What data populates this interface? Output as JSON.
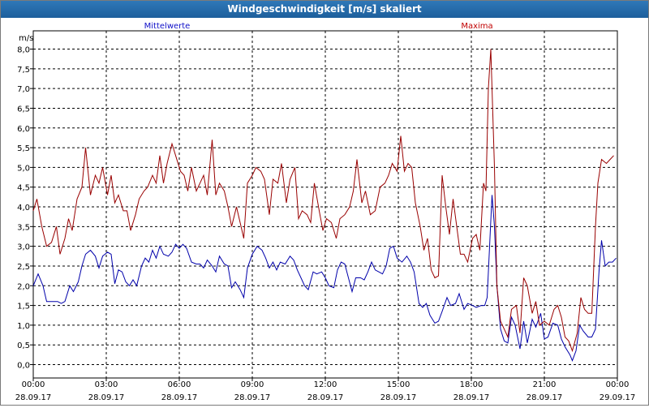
{
  "window": {
    "title": "Windgeschwindigkeit [m/s] skaliert"
  },
  "colors": {
    "mean": "#0000aa",
    "max": "#990000",
    "grid": "#000000",
    "legend_mean": "#1010c8",
    "legend_max": "#c00000"
  },
  "chart_data": {
    "type": "line",
    "title": "Windgeschwindigkeit [m/s] skaliert",
    "ylabel": "m/s",
    "ylim": [
      0,
      8
    ],
    "xlim": [
      "28.09.17 00:00",
      "29.09.17 00:00"
    ],
    "x_unit": "hours since 28.09.17 00:00",
    "yticks": [
      "0,0",
      "0,5",
      "1,0",
      "1,5",
      "2,0",
      "2,5",
      "3,0",
      "3,5",
      "4,0",
      "4,5",
      "5,0",
      "5,5",
      "6,0",
      "6,5",
      "7,0",
      "7,5",
      "8,0"
    ],
    "xticks": [
      {
        "time": "00:00",
        "date": "28.09.17"
      },
      {
        "time": "03:00",
        "date": "28.09.17"
      },
      {
        "time": "06:00",
        "date": "28.09.17"
      },
      {
        "time": "09:00",
        "date": "28.09.17"
      },
      {
        "time": "12:00",
        "date": "28.09.17"
      },
      {
        "time": "15:00",
        "date": "28.09.17"
      },
      {
        "time": "18:00",
        "date": "28.09.17"
      },
      {
        "time": "21:00",
        "date": "28.09.17"
      },
      {
        "time": "00:00",
        "date": "29.09.17"
      }
    ],
    "grid": true,
    "legend_position": "top",
    "series": [
      {
        "name": "Mittelwerte",
        "points": [
          [
            0.0,
            2.0
          ],
          [
            0.2,
            2.3
          ],
          [
            0.4,
            2.0
          ],
          [
            0.55,
            1.6
          ],
          [
            0.7,
            1.6
          ],
          [
            1.0,
            1.6
          ],
          [
            1.15,
            1.55
          ],
          [
            1.3,
            1.6
          ],
          [
            1.5,
            2.0
          ],
          [
            1.65,
            1.85
          ],
          [
            1.85,
            2.1
          ],
          [
            2.0,
            2.5
          ],
          [
            2.15,
            2.8
          ],
          [
            2.35,
            2.9
          ],
          [
            2.55,
            2.75
          ],
          [
            2.7,
            2.45
          ],
          [
            2.85,
            2.75
          ],
          [
            3.05,
            2.85
          ],
          [
            3.2,
            2.8
          ],
          [
            3.35,
            2.05
          ],
          [
            3.5,
            2.4
          ],
          [
            3.65,
            2.35
          ],
          [
            3.8,
            2.1
          ],
          [
            3.95,
            2.0
          ],
          [
            4.1,
            2.15
          ],
          [
            4.25,
            2.0
          ],
          [
            4.45,
            2.5
          ],
          [
            4.6,
            2.7
          ],
          [
            4.75,
            2.6
          ],
          [
            4.9,
            2.9
          ],
          [
            5.05,
            2.7
          ],
          [
            5.2,
            3.0
          ],
          [
            5.35,
            2.8
          ],
          [
            5.55,
            2.75
          ],
          [
            5.7,
            2.85
          ],
          [
            5.85,
            3.05
          ],
          [
            6.0,
            2.95
          ],
          [
            6.15,
            3.05
          ],
          [
            6.3,
            2.95
          ],
          [
            6.5,
            2.6
          ],
          [
            6.7,
            2.55
          ],
          [
            6.85,
            2.55
          ],
          [
            7.0,
            2.45
          ],
          [
            7.15,
            2.65
          ],
          [
            7.35,
            2.5
          ],
          [
            7.5,
            2.35
          ],
          [
            7.65,
            2.75
          ],
          [
            7.85,
            2.55
          ],
          [
            8.0,
            2.5
          ],
          [
            8.15,
            1.95
          ],
          [
            8.3,
            2.1
          ],
          [
            8.5,
            1.9
          ],
          [
            8.65,
            1.7
          ],
          [
            8.8,
            2.45
          ],
          [
            9.0,
            2.8
          ],
          [
            9.2,
            3.0
          ],
          [
            9.4,
            2.9
          ],
          [
            9.55,
            2.7
          ],
          [
            9.7,
            2.45
          ],
          [
            9.85,
            2.6
          ],
          [
            10.0,
            2.4
          ],
          [
            10.15,
            2.6
          ],
          [
            10.35,
            2.55
          ],
          [
            10.55,
            2.75
          ],
          [
            10.7,
            2.65
          ],
          [
            10.85,
            2.4
          ],
          [
            11.0,
            2.2
          ],
          [
            11.15,
            2.0
          ],
          [
            11.3,
            1.9
          ],
          [
            11.5,
            2.35
          ],
          [
            11.65,
            2.3
          ],
          [
            11.85,
            2.35
          ],
          [
            12.0,
            2.2
          ],
          [
            12.15,
            2.0
          ],
          [
            12.35,
            1.95
          ],
          [
            12.5,
            2.4
          ],
          [
            12.65,
            2.6
          ],
          [
            12.8,
            2.55
          ],
          [
            12.95,
            2.2
          ],
          [
            13.1,
            1.85
          ],
          [
            13.25,
            2.2
          ],
          [
            13.45,
            2.2
          ],
          [
            13.6,
            2.15
          ],
          [
            13.75,
            2.35
          ],
          [
            13.9,
            2.6
          ],
          [
            14.05,
            2.4
          ],
          [
            14.2,
            2.35
          ],
          [
            14.35,
            2.3
          ],
          [
            14.5,
            2.5
          ],
          [
            14.65,
            2.95
          ],
          [
            14.8,
            3.0
          ],
          [
            14.95,
            2.7
          ],
          [
            15.15,
            2.6
          ],
          [
            15.35,
            2.75
          ],
          [
            15.5,
            2.6
          ],
          [
            15.65,
            2.35
          ],
          [
            15.85,
            1.55
          ],
          [
            16.0,
            1.45
          ],
          [
            16.15,
            1.55
          ],
          [
            16.3,
            1.25
          ],
          [
            16.5,
            1.05
          ],
          [
            16.65,
            1.1
          ],
          [
            16.8,
            1.35
          ],
          [
            17.0,
            1.7
          ],
          [
            17.15,
            1.5
          ],
          [
            17.35,
            1.55
          ],
          [
            17.5,
            1.8
          ],
          [
            17.7,
            1.4
          ],
          [
            17.85,
            1.55
          ],
          [
            18.05,
            1.5
          ],
          [
            18.2,
            1.45
          ],
          [
            18.4,
            1.5
          ],
          [
            18.55,
            1.5
          ],
          [
            18.65,
            1.7
          ],
          [
            18.75,
            3.0
          ],
          [
            18.85,
            4.3
          ],
          [
            18.95,
            3.5
          ],
          [
            19.05,
            2.0
          ],
          [
            19.2,
            0.9
          ],
          [
            19.35,
            0.6
          ],
          [
            19.5,
            0.55
          ],
          [
            19.65,
            1.2
          ],
          [
            19.8,
            1.0
          ],
          [
            20.0,
            0.4
          ],
          [
            20.15,
            1.1
          ],
          [
            20.3,
            0.55
          ],
          [
            20.5,
            1.15
          ],
          [
            20.65,
            0.95
          ],
          [
            20.85,
            1.3
          ],
          [
            21.0,
            0.65
          ],
          [
            21.15,
            0.7
          ],
          [
            21.35,
            1.05
          ],
          [
            21.55,
            1.0
          ],
          [
            21.7,
            0.65
          ],
          [
            21.85,
            0.45
          ],
          [
            22.05,
            0.25
          ],
          [
            22.15,
            0.1
          ],
          [
            22.3,
            0.35
          ],
          [
            22.45,
            1.0
          ],
          [
            22.6,
            0.85
          ],
          [
            22.8,
            0.7
          ],
          [
            22.95,
            0.7
          ],
          [
            23.1,
            0.9
          ],
          [
            23.25,
            2.4
          ],
          [
            23.35,
            3.15
          ],
          [
            23.5,
            2.5
          ],
          [
            23.65,
            2.6
          ],
          [
            23.8,
            2.6
          ],
          [
            23.95,
            2.7
          ]
        ]
      },
      {
        "name": "Maxima",
        "points": [
          [
            0.0,
            3.9
          ],
          [
            0.15,
            4.2
          ],
          [
            0.35,
            3.5
          ],
          [
            0.55,
            3.0
          ],
          [
            0.75,
            3.1
          ],
          [
            0.95,
            3.5
          ],
          [
            1.1,
            2.8
          ],
          [
            1.3,
            3.2
          ],
          [
            1.45,
            3.7
          ],
          [
            1.6,
            3.4
          ],
          [
            1.8,
            4.2
          ],
          [
            2.0,
            4.5
          ],
          [
            2.15,
            5.5
          ],
          [
            2.35,
            4.3
          ],
          [
            2.55,
            4.8
          ],
          [
            2.7,
            4.6
          ],
          [
            2.85,
            5.0
          ],
          [
            3.05,
            4.3
          ],
          [
            3.2,
            4.8
          ],
          [
            3.35,
            4.1
          ],
          [
            3.5,
            4.3
          ],
          [
            3.7,
            3.9
          ],
          [
            3.85,
            3.9
          ],
          [
            4.0,
            3.4
          ],
          [
            4.2,
            3.8
          ],
          [
            4.35,
            4.2
          ],
          [
            4.55,
            4.4
          ],
          [
            4.7,
            4.5
          ],
          [
            4.9,
            4.8
          ],
          [
            5.05,
            4.6
          ],
          [
            5.2,
            5.3
          ],
          [
            5.35,
            4.6
          ],
          [
            5.5,
            5.1
          ],
          [
            5.7,
            5.6
          ],
          [
            5.85,
            5.3
          ],
          [
            6.05,
            4.9
          ],
          [
            6.2,
            4.8
          ],
          [
            6.35,
            4.4
          ],
          [
            6.5,
            5.0
          ],
          [
            6.7,
            4.4
          ],
          [
            6.85,
            4.6
          ],
          [
            7.0,
            4.8
          ],
          [
            7.15,
            4.3
          ],
          [
            7.35,
            5.7
          ],
          [
            7.5,
            4.3
          ],
          [
            7.65,
            4.6
          ],
          [
            7.85,
            4.4
          ],
          [
            8.0,
            4.0
          ],
          [
            8.15,
            3.5
          ],
          [
            8.35,
            4.0
          ],
          [
            8.5,
            3.6
          ],
          [
            8.65,
            3.2
          ],
          [
            8.8,
            4.6
          ],
          [
            9.0,
            4.8
          ],
          [
            9.15,
            5.0
          ],
          [
            9.35,
            4.9
          ],
          [
            9.5,
            4.7
          ],
          [
            9.7,
            3.8
          ],
          [
            9.85,
            4.7
          ],
          [
            10.05,
            4.6
          ],
          [
            10.2,
            5.1
          ],
          [
            10.4,
            4.1
          ],
          [
            10.55,
            4.7
          ],
          [
            10.75,
            5.0
          ],
          [
            10.9,
            3.7
          ],
          [
            11.05,
            3.9
          ],
          [
            11.25,
            3.8
          ],
          [
            11.4,
            3.6
          ],
          [
            11.55,
            4.6
          ],
          [
            11.75,
            3.9
          ],
          [
            11.9,
            3.4
          ],
          [
            12.05,
            3.7
          ],
          [
            12.25,
            3.6
          ],
          [
            12.45,
            3.2
          ],
          [
            12.6,
            3.7
          ],
          [
            12.8,
            3.8
          ],
          [
            13.0,
            4.0
          ],
          [
            13.15,
            4.4
          ],
          [
            13.3,
            5.2
          ],
          [
            13.5,
            4.1
          ],
          [
            13.65,
            4.4
          ],
          [
            13.85,
            3.8
          ],
          [
            14.05,
            3.9
          ],
          [
            14.25,
            4.5
          ],
          [
            14.45,
            4.6
          ],
          [
            14.6,
            4.8
          ],
          [
            14.75,
            5.1
          ],
          [
            14.95,
            4.9
          ],
          [
            15.1,
            5.8
          ],
          [
            15.25,
            4.9
          ],
          [
            15.4,
            5.1
          ],
          [
            15.55,
            5.0
          ],
          [
            15.7,
            4.1
          ],
          [
            15.9,
            3.5
          ],
          [
            16.05,
            2.9
          ],
          [
            16.2,
            3.2
          ],
          [
            16.35,
            2.4
          ],
          [
            16.5,
            2.2
          ],
          [
            16.65,
            2.25
          ],
          [
            16.8,
            4.8
          ],
          [
            16.95,
            4.0
          ],
          [
            17.1,
            3.3
          ],
          [
            17.25,
            4.2
          ],
          [
            17.4,
            3.5
          ],
          [
            17.55,
            2.8
          ],
          [
            17.7,
            2.8
          ],
          [
            17.85,
            2.6
          ],
          [
            18.05,
            3.2
          ],
          [
            18.2,
            3.3
          ],
          [
            18.35,
            2.9
          ],
          [
            18.5,
            4.6
          ],
          [
            18.6,
            4.4
          ],
          [
            18.7,
            7.0
          ],
          [
            18.8,
            8.0
          ],
          [
            18.95,
            5.0
          ],
          [
            19.05,
            2.0
          ],
          [
            19.2,
            1.1
          ],
          [
            19.35,
            0.9
          ],
          [
            19.5,
            0.7
          ],
          [
            19.65,
            1.4
          ],
          [
            19.85,
            1.5
          ],
          [
            20.0,
            0.8
          ],
          [
            20.15,
            2.2
          ],
          [
            20.3,
            2.0
          ],
          [
            20.5,
            1.3
          ],
          [
            20.65,
            1.6
          ],
          [
            20.8,
            1.0
          ],
          [
            21.0,
            1.1
          ],
          [
            21.2,
            1.0
          ],
          [
            21.4,
            1.4
          ],
          [
            21.55,
            1.5
          ],
          [
            21.7,
            1.2
          ],
          [
            21.85,
            0.7
          ],
          [
            22.0,
            0.6
          ],
          [
            22.15,
            0.35
          ],
          [
            22.35,
            0.8
          ],
          [
            22.5,
            1.7
          ],
          [
            22.65,
            1.4
          ],
          [
            22.8,
            1.3
          ],
          [
            22.95,
            1.3
          ],
          [
            23.1,
            3.5
          ],
          [
            23.2,
            4.6
          ],
          [
            23.35,
            5.2
          ],
          [
            23.55,
            5.1
          ],
          [
            23.7,
            5.2
          ],
          [
            23.85,
            5.3
          ]
        ]
      }
    ]
  }
}
